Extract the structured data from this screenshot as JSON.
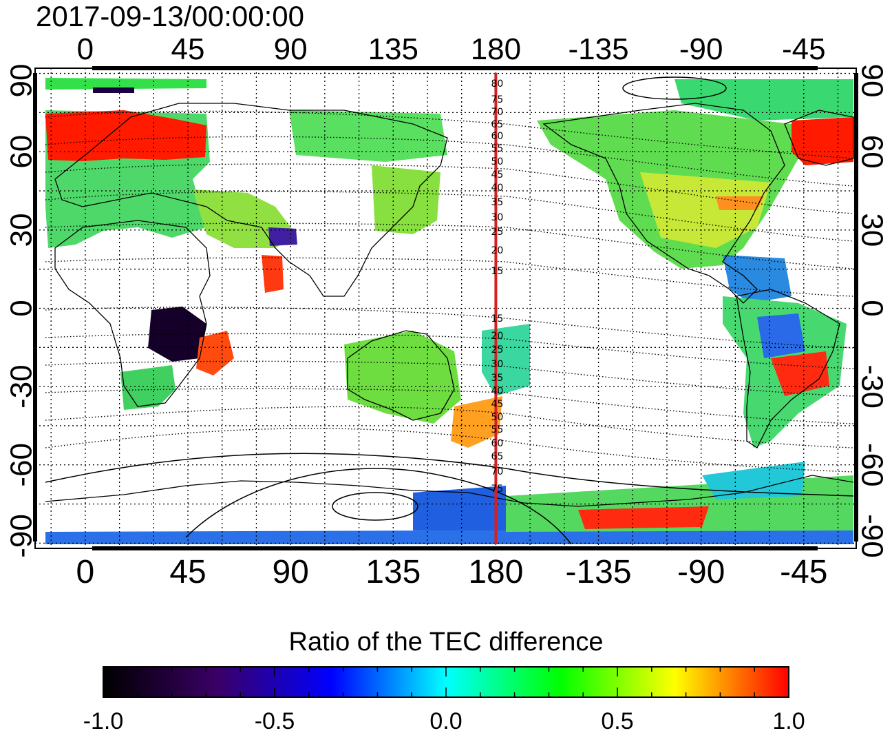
{
  "title": "2017-09-13/00:00:00",
  "map": {
    "lon_ticks_top": [
      "0",
      "45",
      "90",
      "135",
      "180",
      "-135",
      "-90",
      "-45"
    ],
    "lon_ticks_bottom": [
      "0",
      "45",
      "90",
      "135",
      "180",
      "-135",
      "-90",
      "-45"
    ],
    "lat_ticks_left": [
      "90",
      "60",
      "30",
      "0",
      "-30",
      "-60",
      "-90"
    ],
    "lat_ticks_right": [
      "90",
      "60",
      "30",
      "0",
      "-30",
      "-60",
      "-90"
    ],
    "lon_values": [
      0,
      45,
      90,
      135,
      180,
      225,
      270,
      315
    ],
    "lat_values": [
      90,
      60,
      30,
      0,
      -30,
      -60,
      -90
    ],
    "lon_range": [
      -22,
      338
    ],
    "lat_range": [
      -92,
      92
    ],
    "meridian_line_lon": 180,
    "meridian_line_color": "#d62020",
    "magnetic_latitude_labels_north": [
      "80",
      "75",
      "70",
      "65",
      "60",
      "55",
      "50",
      "45",
      "40",
      "35",
      "30",
      "25",
      "20",
      "15"
    ],
    "magnetic_latitude_labels_south": [
      "15",
      "20",
      "25",
      "30",
      "35",
      "40",
      "45",
      "50",
      "55",
      "60",
      "65",
      "70",
      "75"
    ]
  },
  "colorbar": {
    "title": "Ratio of the TEC difference",
    "tick_labels": [
      "-1.0",
      "-0.5",
      "0.0",
      "0.5",
      "1.0"
    ],
    "range": [
      -1.0,
      1.0
    ],
    "colors": [
      "#000000",
      "#3a0066",
      "#0000ff",
      "#00ffff",
      "#00ff00",
      "#ffff00",
      "#ff0000"
    ]
  }
}
